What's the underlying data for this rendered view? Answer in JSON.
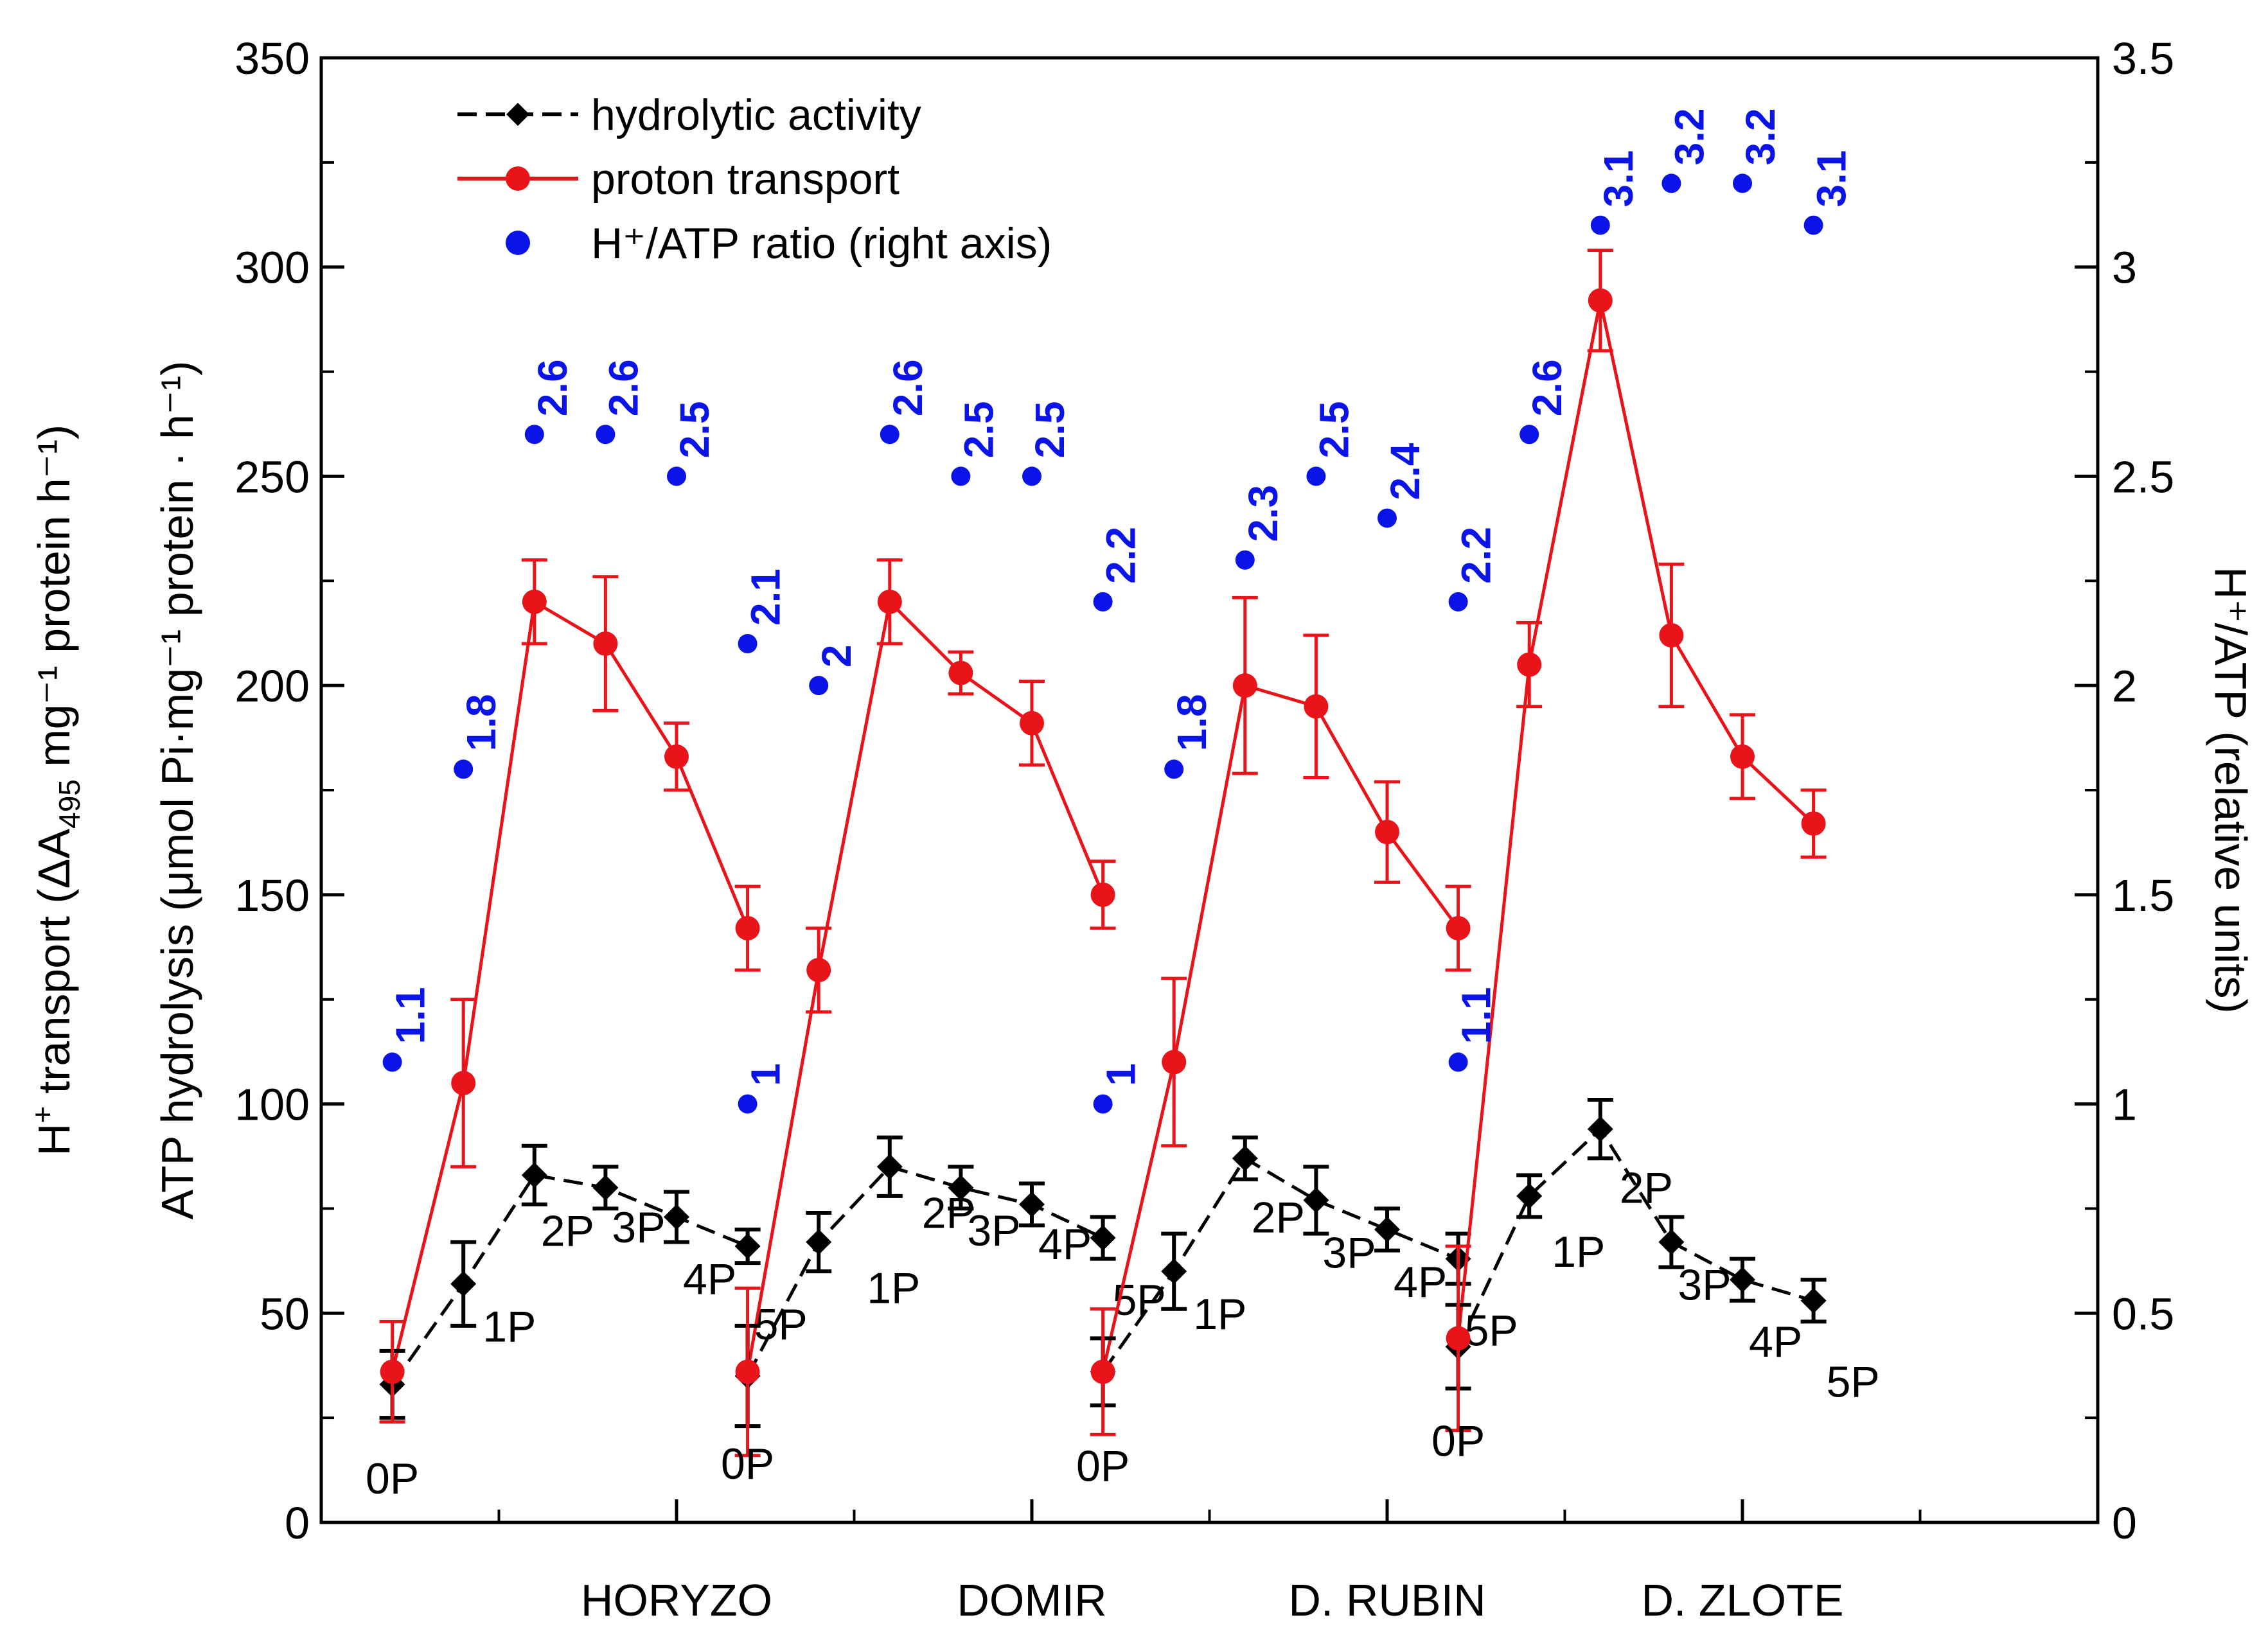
{
  "colors": {
    "hydrolytic": "#000000",
    "proton": "#e8141a",
    "ratio": "#0a14e6"
  },
  "chart_data": {
    "type": "line",
    "categories": [
      "HORYZO",
      "DOMIR",
      "D. RUBIN",
      "D. ZLOTE"
    ],
    "levels": [
      "0P",
      "1P",
      "2P",
      "3P",
      "4P",
      "5P"
    ],
    "ylim": [
      0,
      350
    ],
    "y2lim": [
      0,
      3.5
    ],
    "yticks": [
      "0",
      "50",
      "100",
      "150",
      "200",
      "250",
      "300",
      "350"
    ],
    "y2ticks": [
      "0",
      "0.5",
      "1",
      "1.5",
      "2",
      "2.5",
      "3",
      "3.5"
    ],
    "ylabel_hydro": "ATP hydrolysis (μmol Pi·mg⁻¹ protein · h⁻¹)",
    "ylabel_transport_pre": "H",
    "ylabel_transport_sup": "+",
    "ylabel_transport_mid": " transport (ΔA",
    "ylabel_transport_sub": "495",
    "ylabel_transport_post": " mg⁻¹ protein h⁻¹)",
    "y2label": "H⁺/ATP (relative units)",
    "legend": [
      {
        "key": "hydrolytic",
        "label": "hydrolytic activity"
      },
      {
        "key": "proton",
        "label": "proton transport"
      },
      {
        "key": "ratio",
        "label": "H⁺/ATP ratio (right axis)"
      }
    ],
    "groups": [
      {
        "name": "HORYZO",
        "hydrolytic": [
          33,
          57,
          83,
          80,
          73,
          66
        ],
        "hydrolytic_err": [
          8,
          10,
          7,
          5,
          6,
          4
        ],
        "proton": [
          36,
          105,
          220,
          210,
          183,
          142
        ],
        "proton_err": [
          12,
          20,
          10,
          16,
          8,
          10
        ],
        "ratio": [
          1.1,
          1.8,
          2.6,
          2.6,
          2.5,
          2.1
        ],
        "ratio_labels": [
          "1.1",
          "1.8",
          "2.6",
          "2.6",
          "2.5",
          "2.1"
        ]
      },
      {
        "name": "DOMIR",
        "hydrolytic": [
          35,
          67,
          85,
          80,
          76,
          68
        ],
        "hydrolytic_err": [
          12,
          7,
          7,
          5,
          5,
          5
        ],
        "proton": [
          36,
          132,
          220,
          203,
          191,
          150
        ],
        "proton_err": [
          20,
          10,
          10,
          5,
          10,
          8
        ],
        "ratio": [
          1.0,
          2.0,
          2.6,
          2.5,
          2.5,
          2.2
        ],
        "ratio_labels": [
          "1",
          "2",
          "2.6",
          "2.5",
          "2.5",
          "2.2"
        ]
      },
      {
        "name": "D. RUBIN",
        "hydrolytic": [
          36,
          60,
          87,
          77,
          70,
          63
        ],
        "hydrolytic_err": [
          8,
          9,
          5,
          8,
          5,
          6
        ],
        "proton": [
          36,
          110,
          200,
          195,
          165,
          142
        ],
        "proton_err": [
          15,
          20,
          21,
          17,
          12,
          10
        ],
        "ratio": [
          1.0,
          1.8,
          2.3,
          2.5,
          2.4,
          2.2
        ],
        "ratio_labels": [
          "1",
          "1.8",
          "2.3",
          "2.5",
          "2.4",
          "2.2"
        ]
      },
      {
        "name": "D. ZLOTE",
        "hydrolytic": [
          42,
          78,
          94,
          67,
          58,
          53
        ],
        "hydrolytic_err": [
          10,
          5,
          7,
          6,
          5,
          5
        ],
        "proton": [
          44,
          205,
          292,
          212,
          183,
          167
        ],
        "proton_err": [
          22,
          10,
          12,
          17,
          10,
          8
        ],
        "ratio": [
          1.1,
          2.6,
          3.1,
          3.2,
          3.2,
          3.1
        ],
        "ratio_labels": [
          "1.1",
          "2.6",
          "3.1",
          "3.2",
          "3.2",
          "3.1"
        ]
      }
    ]
  }
}
